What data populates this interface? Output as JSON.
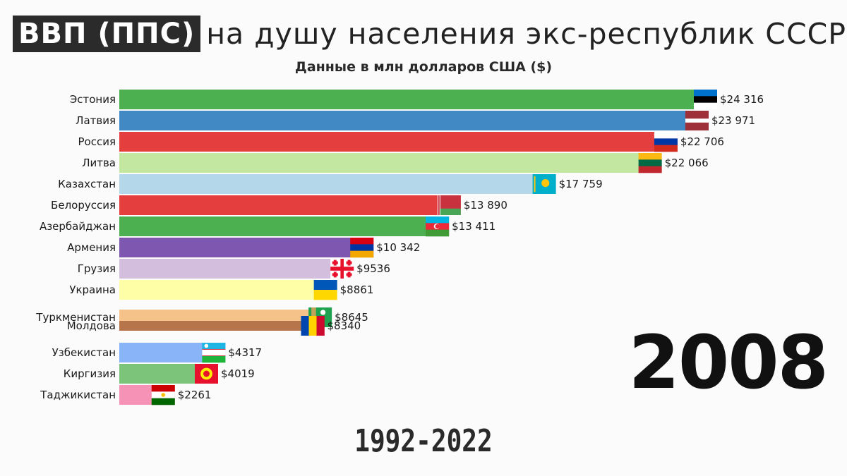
{
  "header": {
    "title_highlight": "ВВП (ППС)",
    "title_rest": "на душу населения экс-республик СССР",
    "subtitle": "Данные в млн долларов США ($)"
  },
  "year": "2008",
  "range": "1992-2022",
  "chart_data": {
    "type": "bar",
    "orientation": "horizontal",
    "title": "ВВП (ППС) на душу населения экс-республик СССР",
    "subtitle": "Данные в млн долларов США ($)",
    "xlim": [
      0,
      24316
    ],
    "grid": false,
    "categories": [
      "Эстония",
      "Латвия",
      "Россия",
      "Литва",
      "Казахстан",
      "Белоруссия",
      "Азербайджан",
      "Армения",
      "Грузия",
      "Украина",
      "Туркменистан",
      "Молдова",
      "Узбекистан",
      "Киргизия",
      "Таджикистан"
    ],
    "values": [
      24316,
      23971,
      22706,
      22066,
      17759,
      13890,
      13411,
      10342,
      9536,
      8861,
      8645,
      8340,
      4317,
      4019,
      2261
    ],
    "value_labels": [
      "$24 316",
      "$23 971",
      "$22 706",
      "$22 066",
      "$17 759",
      "$13 890",
      "$13 411",
      "$10 342",
      "$9536",
      "$8861",
      "$8645",
      "$8340",
      "$4317",
      "$4019",
      "$2261"
    ],
    "colors": [
      "#4caf50",
      "#4189c5",
      "#e53e3e",
      "#c3e6a0",
      "#b4d8ea",
      "#e53e3e",
      "#4caf50",
      "#7e57b0",
      "#d3bfdd",
      "#fdfea6",
      "#f5c28a",
      "#b6754a",
      "#8ab4f8",
      "#7cc47a",
      "#f592b6"
    ],
    "flags": [
      "estonia",
      "latvia",
      "russia",
      "lithuania",
      "kazakhstan",
      "belarus",
      "azerbaijan",
      "armenia",
      "georgia",
      "ukraine",
      "turkmenistan",
      "moldova",
      "uzbekistan",
      "kyrgyzstan",
      "tajikistan"
    ]
  }
}
